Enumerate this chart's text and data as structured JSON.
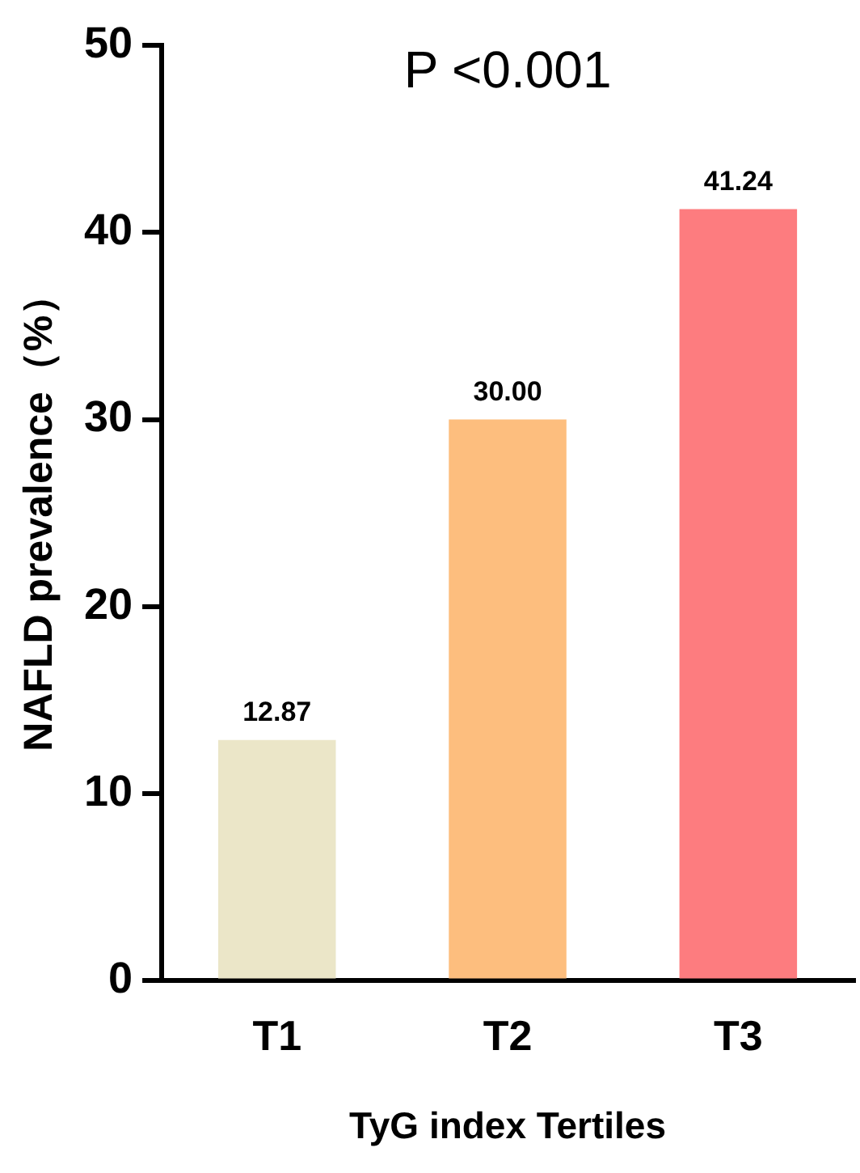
{
  "chart_data": {
    "type": "bar",
    "xlabel": "TyG index Tertiles",
    "ylabel": "NAFLD prevalence（%）",
    "annotations": [
      "P <0.001"
    ],
    "categories": [
      "T1",
      "T2",
      "T3"
    ],
    "values": [
      12.87,
      30.0,
      41.24
    ],
    "value_labels": [
      "12.87",
      "30.00",
      "41.24"
    ],
    "colors": [
      "#ebe6c8",
      "#fdbe7e",
      "#fd7c7f"
    ],
    "ylim": [
      0,
      50
    ],
    "yticks": [
      0,
      10,
      20,
      30,
      40,
      50
    ],
    "grid": false,
    "legend": false
  }
}
